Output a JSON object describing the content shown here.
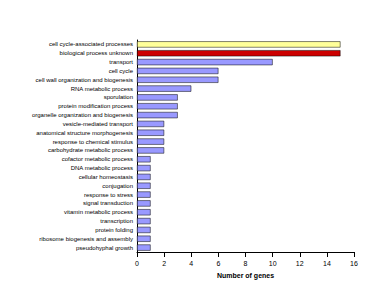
{
  "chart_data": {
    "type": "bar",
    "orientation": "horizontal",
    "x_label": "Number of genes",
    "categories": [
      "cell cycle-associated processes",
      "biological process unknown",
      "transport",
      "cell cycle",
      "cell wall organization and biogenesis",
      "RNA metabolic process",
      "sporulation",
      "protein modification process",
      "organelle organization and biogenesis",
      "vesicle-mediated transport",
      "anatomical structure morphogenesis",
      "response to chemical stimulus",
      "carbohydrate metabolic process",
      "cofactor metabolic process",
      "DNA metabolic process",
      "cellular homeostasis",
      "conjugation",
      "response to stress",
      "signal transduction",
      "vitamin metabolic process",
      "transcription",
      "protein folding",
      "ribosome biogenesis and assembly",
      "pseudohyphal growth"
    ],
    "values": [
      15,
      15,
      10,
      6,
      6,
      4,
      3,
      3,
      3,
      2,
      2,
      2,
      2,
      1,
      1,
      1,
      1,
      1,
      1,
      1,
      1,
      1,
      1,
      1
    ],
    "colors": [
      "#ffff99",
      "#cc0000",
      "#9999ff",
      "#9999ff",
      "#9999ff",
      "#9999ff",
      "#9999ff",
      "#9999ff",
      "#9999ff",
      "#9999ff",
      "#9999ff",
      "#9999ff",
      "#9999ff",
      "#9999ff",
      "#9999ff",
      "#9999ff",
      "#9999ff",
      "#9999ff",
      "#9999ff",
      "#9999ff",
      "#9999ff",
      "#9999ff",
      "#9999ff",
      "#9999ff"
    ],
    "xlim": [
      0,
      16
    ],
    "xticks": [
      0,
      2,
      4,
      6,
      8,
      10,
      12,
      14,
      16
    ],
    "grid": false
  }
}
